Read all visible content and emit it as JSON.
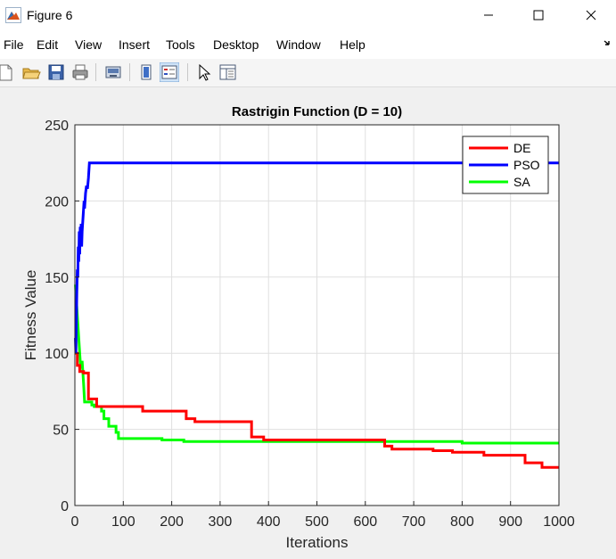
{
  "window": {
    "title": "Figure 6"
  },
  "menu": [
    "File",
    "Edit",
    "View",
    "Insert",
    "Tools",
    "Desktop",
    "Window",
    "Help"
  ],
  "toolbar": {
    "icons": [
      "new-figure-icon",
      "open-file-icon",
      "save-icon",
      "print-icon",
      "export-icon",
      "colorbar-icon",
      "legend-icon",
      "pointer-icon",
      "property-inspector-icon"
    ]
  },
  "chart_data": {
    "type": "line",
    "title": "Rastrigin Function (D = 10)",
    "xlabel": "Iterations",
    "ylabel": "Fitness Value",
    "xlim": [
      0,
      1000
    ],
    "ylim": [
      0,
      250
    ],
    "xticks": [
      0,
      100,
      200,
      300,
      400,
      500,
      600,
      700,
      800,
      900,
      1000
    ],
    "yticks": [
      0,
      50,
      100,
      150,
      200,
      250
    ],
    "grid": true,
    "legend_position": "top-right",
    "series": [
      {
        "name": "DE",
        "color": "#ff0000",
        "x": [
          1,
          5,
          5,
          10,
          10,
          18,
          18,
          28,
          28,
          45,
          45,
          140,
          140,
          230,
          230,
          248,
          248,
          365,
          365,
          390,
          390,
          640,
          640,
          655,
          655,
          740,
          740,
          780,
          780,
          845,
          845,
          930,
          930,
          965,
          965,
          1000
        ],
        "y": [
          100,
          100,
          92,
          92,
          88,
          88,
          87,
          87,
          70,
          70,
          65,
          65,
          62,
          62,
          57,
          57,
          55,
          55,
          45,
          45,
          43,
          43,
          39,
          39,
          37,
          37,
          36,
          36,
          35,
          35,
          33,
          33,
          28,
          28,
          25,
          25
        ]
      },
      {
        "name": "PSO",
        "color": "#0000ff",
        "x": [
          1,
          2,
          3,
          4,
          5,
          6,
          7,
          8,
          9,
          10,
          11,
          12,
          13,
          14,
          15,
          16,
          17,
          18,
          19,
          20,
          22,
          24,
          26,
          28,
          30,
          32,
          1000
        ],
        "y": [
          110,
          100,
          120,
          140,
          155,
          150,
          170,
          160,
          180,
          165,
          183,
          175,
          185,
          170,
          180,
          185,
          190,
          195,
          200,
          195,
          205,
          210,
          208,
          215,
          225,
          225,
          225
        ]
      },
      {
        "name": "SA",
        "color": "#00ff00",
        "x": [
          1,
          5,
          8,
          10,
          12,
          15,
          18,
          20,
          22,
          35,
          35,
          40,
          40,
          55,
          55,
          60,
          60,
          70,
          70,
          85,
          85,
          90,
          90,
          180,
          180,
          225,
          225,
          800,
          800,
          1000
        ],
        "y": [
          145,
          125,
          110,
          100,
          90,
          95,
          80,
          68,
          68,
          68,
          66,
          66,
          65,
          65,
          62,
          62,
          57,
          57,
          52,
          52,
          48,
          48,
          44,
          44,
          43,
          43,
          42,
          42,
          41,
          41
        ]
      }
    ]
  }
}
